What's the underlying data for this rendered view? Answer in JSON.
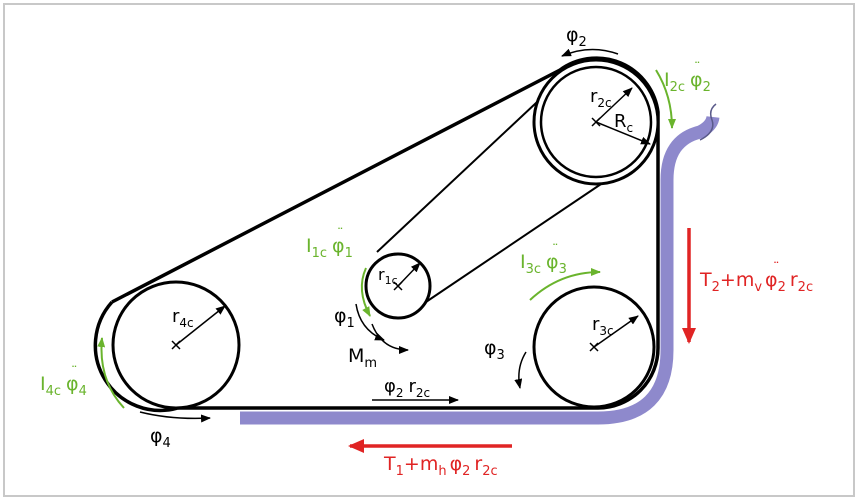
{
  "colors": {
    "belt": "#000000",
    "green_arrow": "#6ab42d",
    "red_arrow": "#e02424",
    "sheet": "#8e89cc",
    "frame": "#c8c8c8"
  },
  "labels": {
    "phi2_top": {
      "base": "φ",
      "sub": "2"
    },
    "I2c": {
      "I": "I",
      "sub": "2c",
      "phi": "φ",
      "phisub": "2"
    },
    "r2c": {
      "base": "r",
      "sub": "2c"
    },
    "Rc": {
      "base": "R",
      "sub": "c"
    },
    "I1c": {
      "I": "I",
      "sub": "1c",
      "phi": "φ",
      "phisub": "1"
    },
    "r1c": {
      "base": "r",
      "sub": "1c"
    },
    "phi1": {
      "base": "φ",
      "sub": "1"
    },
    "Mm": {
      "base": "M",
      "sub": "m"
    },
    "I3c": {
      "I": "I",
      "sub": "3c",
      "phi": "φ",
      "phisub": "3"
    },
    "r3c": {
      "base": "r",
      "sub": "3c"
    },
    "phi3": {
      "base": "φ",
      "sub": "3"
    },
    "r4c": {
      "base": "r",
      "sub": "4c"
    },
    "I4c": {
      "I": "I",
      "sub": "4c",
      "phi": "φ",
      "phisub": "4"
    },
    "phi4": {
      "base": "φ",
      "sub": "4"
    },
    "phi2r2c": {
      "phi": "φ",
      "phisub": "2",
      "r": "r",
      "rsub": "2c"
    },
    "T2": {
      "T": "T",
      "Tsub": "2",
      "plus": "+",
      "m": "m",
      "msub": "v",
      "phi": "φ",
      "phisub": "2",
      "r": "r",
      "rsub": "2c"
    },
    "T1": {
      "T": "T",
      "Tsub": "1",
      "plus": "+",
      "m": "m",
      "msub": "h",
      "phi": "φ",
      "phisub": "2",
      "r": "r",
      "rsub": "2c"
    }
  }
}
